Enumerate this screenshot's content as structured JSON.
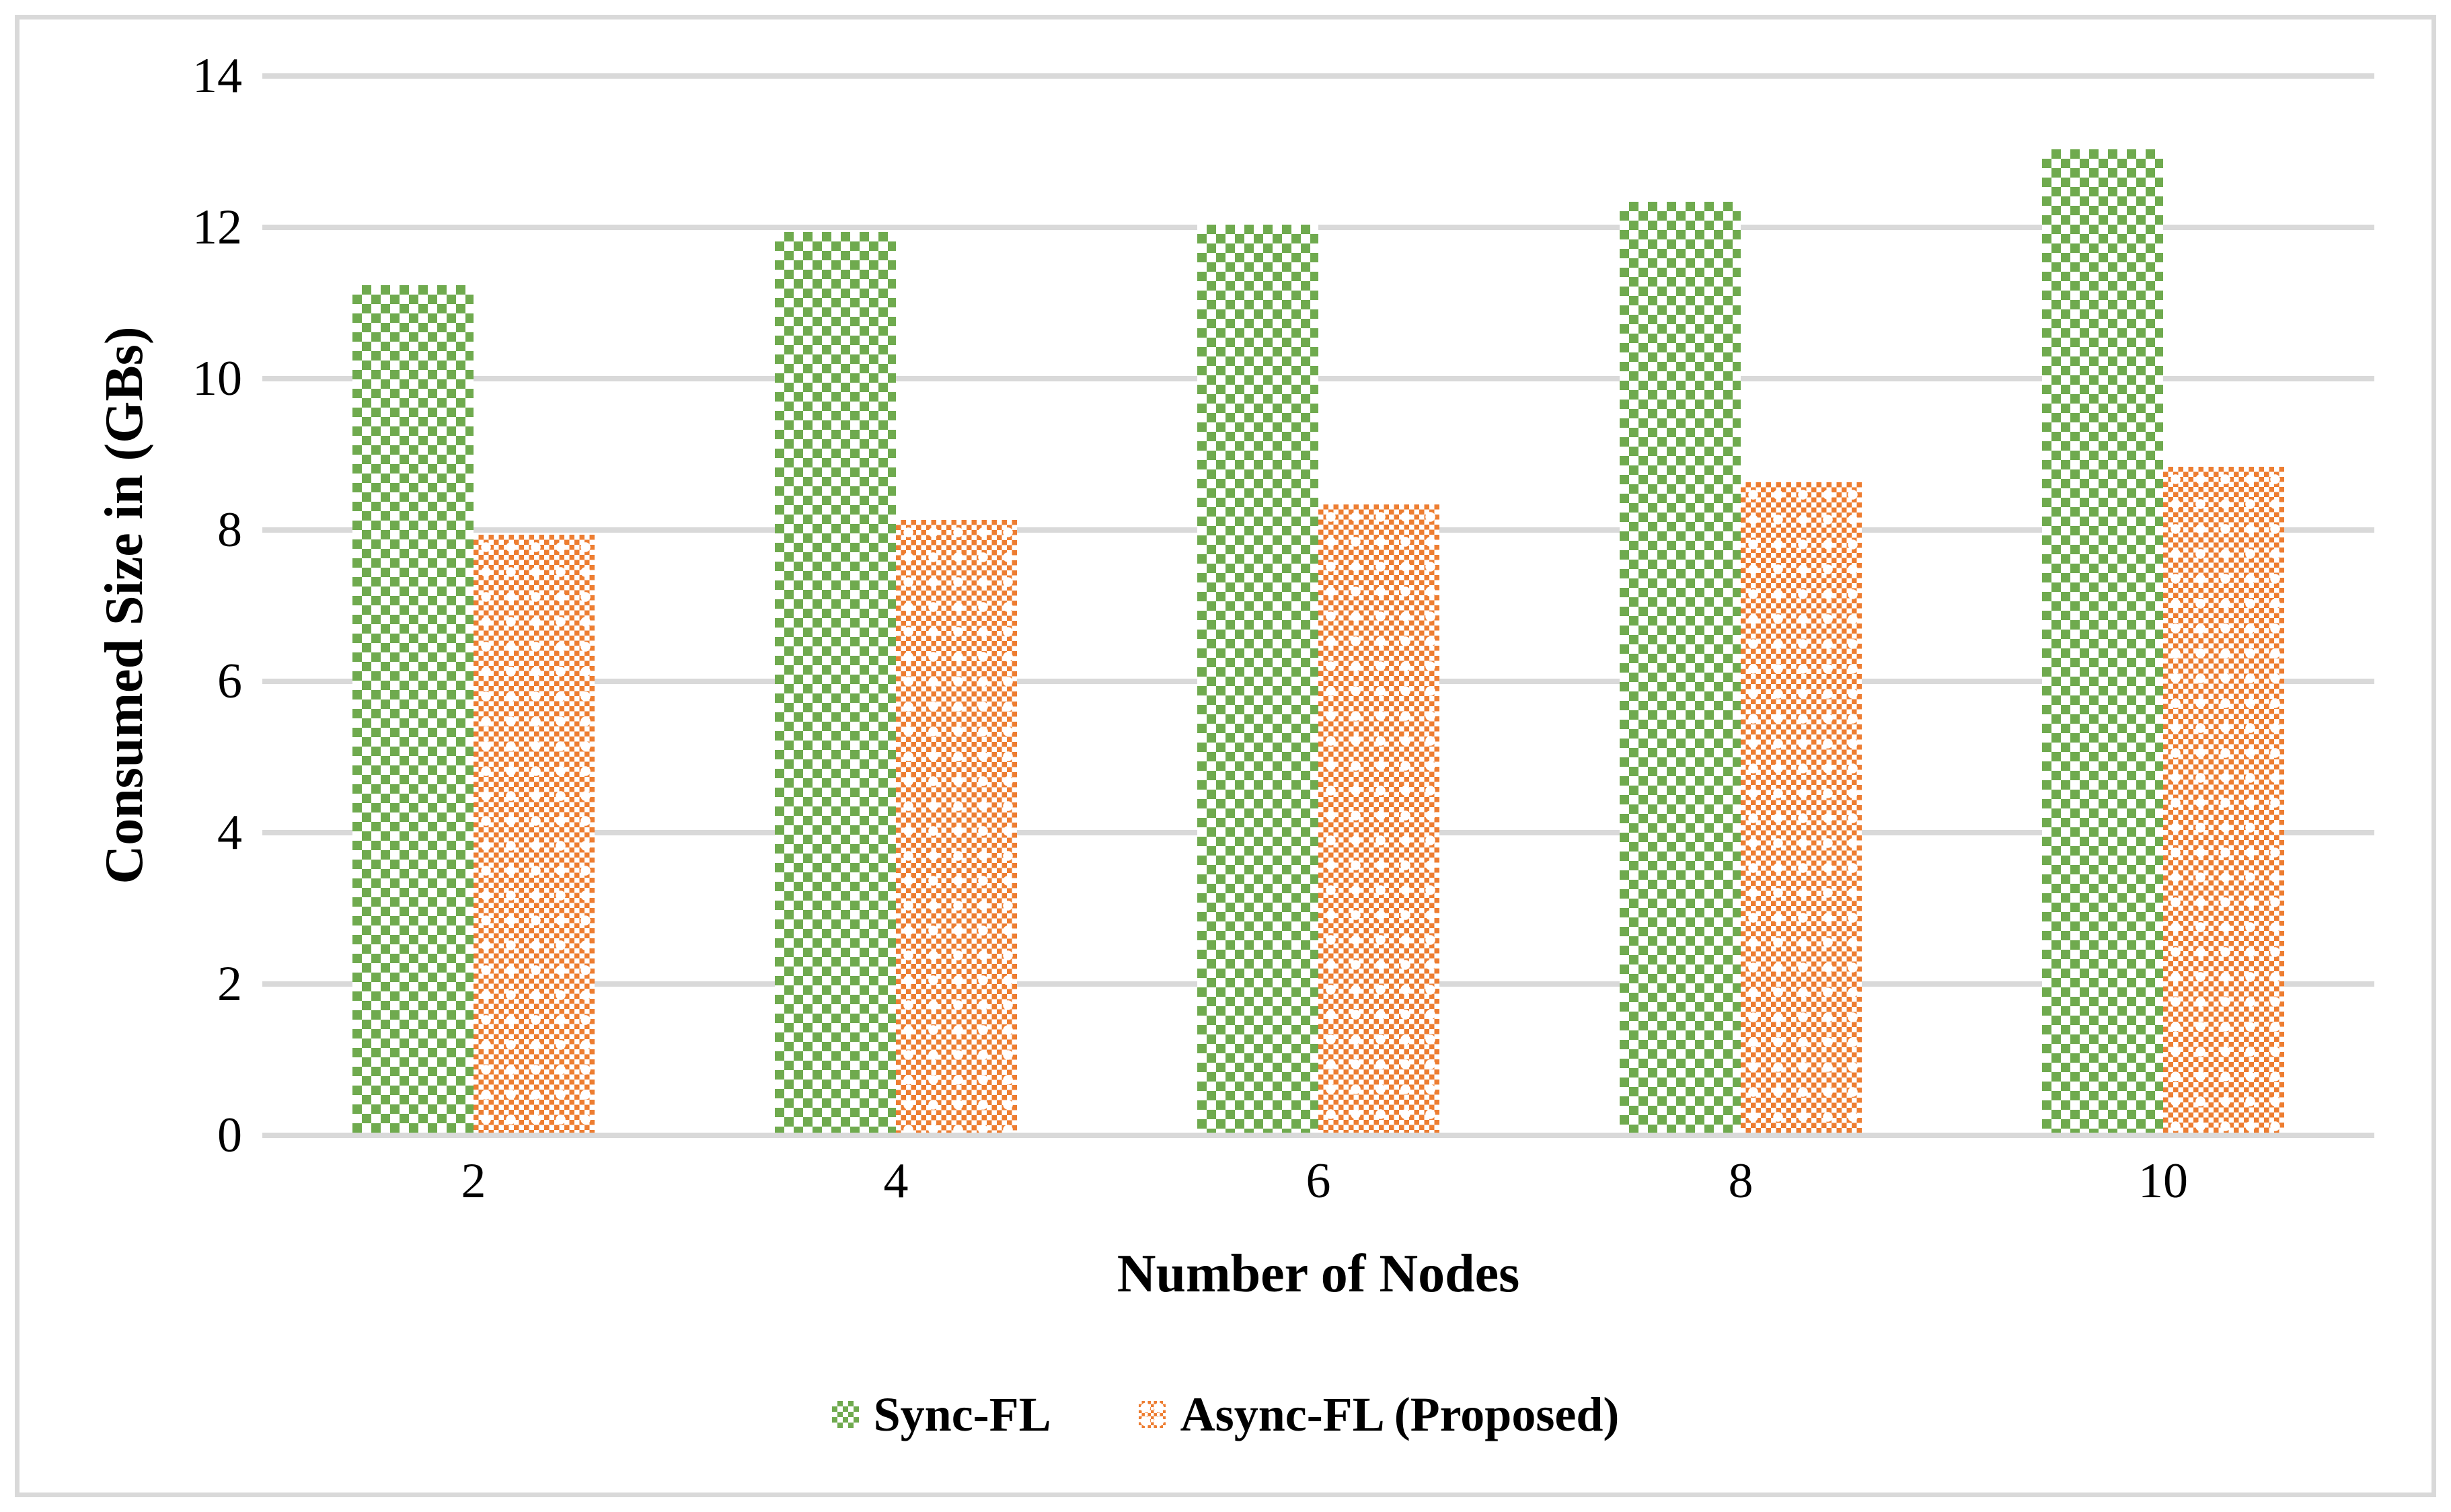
{
  "chart_data": {
    "type": "bar",
    "title": "",
    "categories": [
      "2",
      "4",
      "6",
      "8",
      "10"
    ],
    "series": [
      {
        "name": "Sync-FL",
        "color": "#6faa4e",
        "pattern": "green-diagonal-lattice",
        "values": [
          11.2,
          11.9,
          12.0,
          12.3,
          13.0
        ]
      },
      {
        "name": "Async-FL (Proposed)",
        "color": "#ed7d31",
        "pattern": "orange-fine-checker",
        "values": [
          7.9,
          8.1,
          8.3,
          8.6,
          8.8
        ]
      }
    ],
    "xlabel": "Number of Nodes",
    "ylabel": "Consumed Size in (GBs)",
    "ylim": [
      0,
      14
    ],
    "yticks": [
      0,
      2,
      4,
      6,
      8,
      10,
      12,
      14
    ],
    "grid": true,
    "gridline_color": "#d9d9d9",
    "legend_position": "bottom-center"
  }
}
